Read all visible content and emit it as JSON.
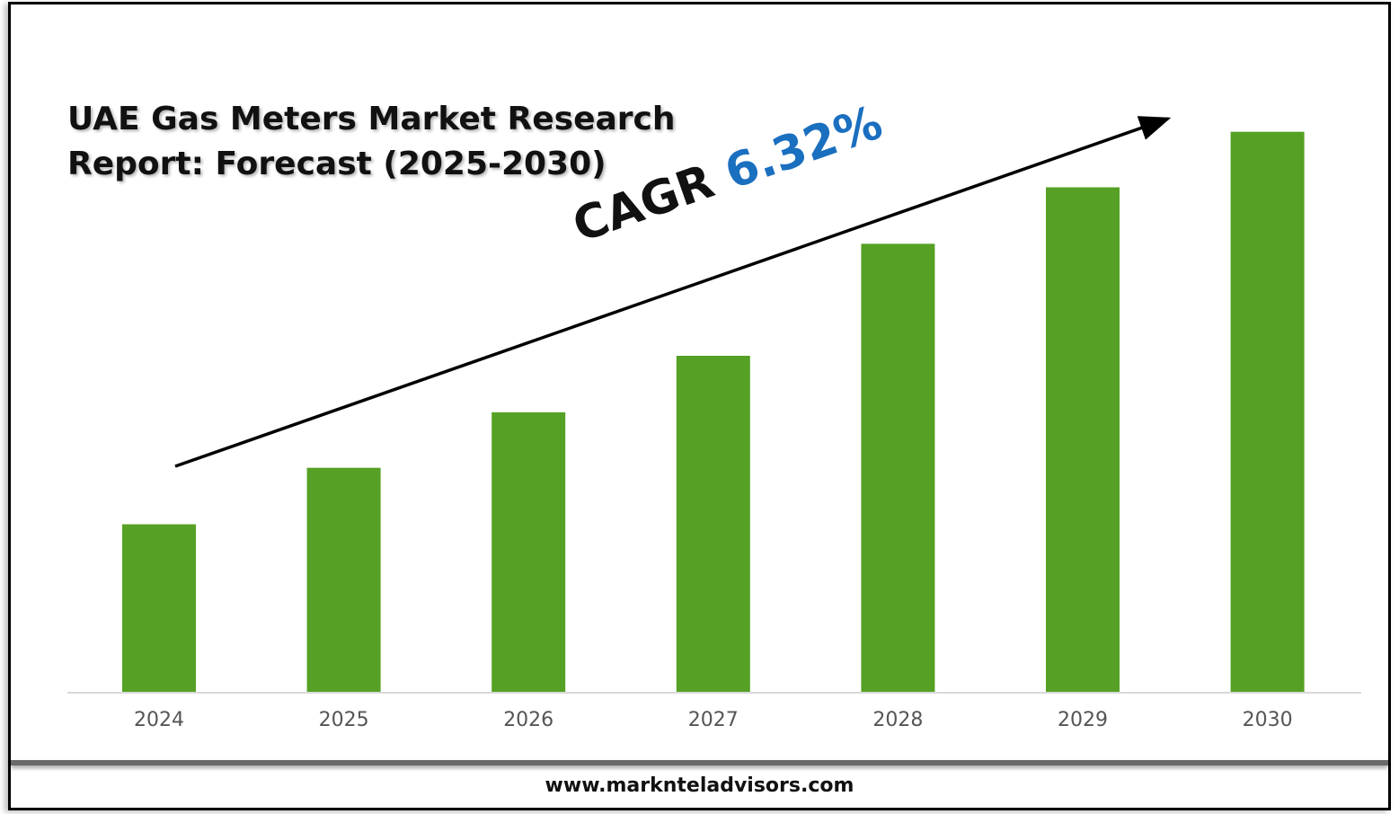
{
  "title_line1": "UAE Gas Meters Market Research",
  "title_line2": "Report: Forecast (2025-2030)",
  "cagr_label": "CAGR",
  "cagr_value": "6.32%",
  "footer": "www.marknteladvisors.com",
  "colors": {
    "bar": "#56a125",
    "cagr_value": "#1a6fbf",
    "axis": "#d9d9d9"
  },
  "chart_data": {
    "type": "bar",
    "title": "UAE Gas Meters Market Research Report: Forecast (2025-2030)",
    "categories": [
      "2024",
      "2025",
      "2026",
      "2027",
      "2028",
      "2029",
      "2030"
    ],
    "values": [
      1.78,
      2.38,
      2.97,
      3.57,
      4.76,
      5.36,
      5.95
    ],
    "value_note": "relative heights; no value axis shown",
    "xlabel": "",
    "ylabel": "",
    "ylim": [
      0,
      6.3
    ],
    "grid": false,
    "annotation": "CAGR 6.32%"
  }
}
